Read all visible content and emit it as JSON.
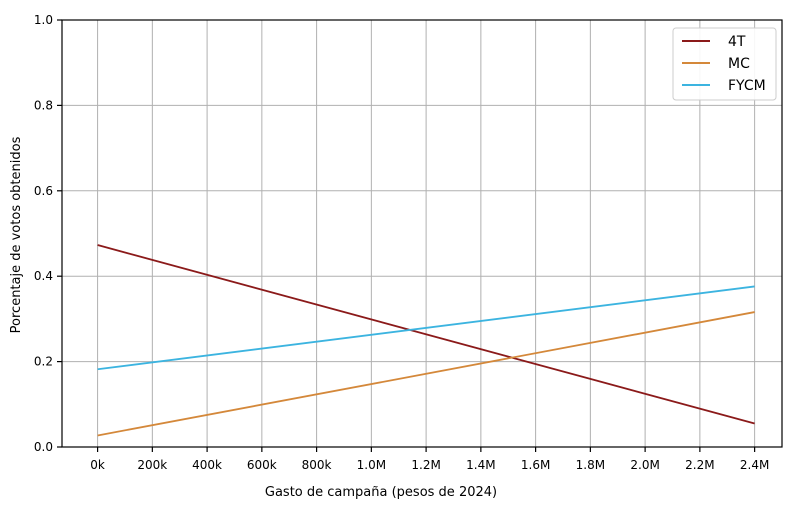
{
  "chart_data": {
    "type": "line",
    "title": "",
    "xlabel": "Gasto de campaña (pesos de 2024)",
    "ylabel": "Porcentaje de votos obtenidos",
    "xlim": [
      -0.13,
      2.5
    ],
    "ylim": [
      0.0,
      1.0
    ],
    "x_ticks": [
      0,
      0.2,
      0.4,
      0.6,
      0.8,
      1.0,
      1.2,
      1.4,
      1.6,
      1.8,
      2.0,
      2.2,
      2.4
    ],
    "x_tick_labels": [
      "0k",
      "200k",
      "400k",
      "600k",
      "800k",
      "1.0M",
      "1.2M",
      "1.4M",
      "1.6M",
      "1.8M",
      "2.0M",
      "2.2M",
      "2.4M"
    ],
    "y_ticks": [
      0.0,
      0.2,
      0.4,
      0.6,
      0.8,
      1.0
    ],
    "y_tick_labels": [
      "0.0",
      "0.2",
      "0.4",
      "0.6",
      "0.8",
      "1.0"
    ],
    "grid": true,
    "legend_position": "top-right",
    "series": [
      {
        "name": "4T",
        "color": "#8b1a1a",
        "x": [
          0,
          2.4
        ],
        "y": [
          0.473,
          0.055
        ]
      },
      {
        "name": "MC",
        "color": "#d4883a",
        "x": [
          0,
          2.4
        ],
        "y": [
          0.027,
          0.316
        ]
      },
      {
        "name": "FYCM",
        "color": "#3cb4e0",
        "x": [
          0,
          2.4
        ],
        "y": [
          0.182,
          0.376
        ]
      }
    ]
  }
}
